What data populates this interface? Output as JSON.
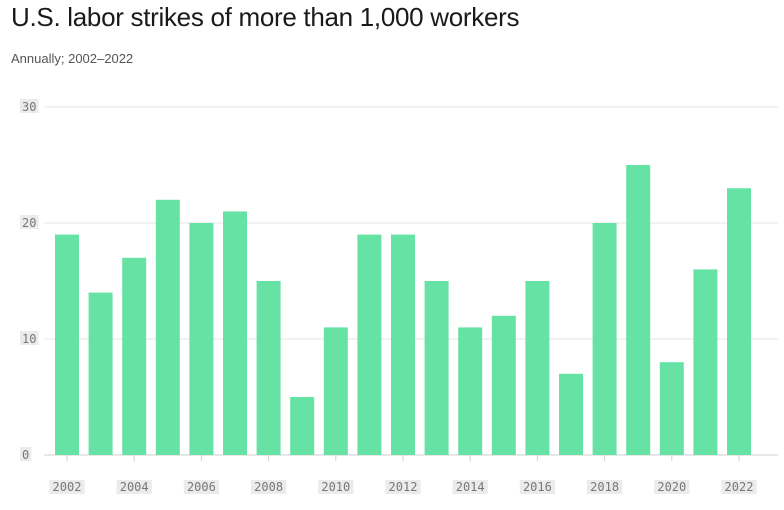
{
  "title": "U.S. labor strikes of more than 1,000 workers",
  "subtitle": "Annually; 2002–2022",
  "colors": {
    "bar": "#67e2a5",
    "grid": "#e6e6e6",
    "text": "#1a1a1a"
  },
  "chart_data": {
    "type": "bar",
    "title": "U.S. labor strikes of more than 1,000 workers",
    "subtitle": "Annually; 2002–2022",
    "xlabel": "",
    "ylabel": "",
    "categories": [
      "2002",
      "2003",
      "2004",
      "2005",
      "2006",
      "2007",
      "2008",
      "2009",
      "2010",
      "2011",
      "2012",
      "2013",
      "2014",
      "2015",
      "2016",
      "2017",
      "2018",
      "2019",
      "2020",
      "2021",
      "2022"
    ],
    "values": [
      19,
      14,
      17,
      22,
      20,
      21,
      15,
      5,
      11,
      19,
      19,
      15,
      11,
      12,
      15,
      7,
      20,
      25,
      8,
      16,
      23
    ],
    "ylim": [
      0,
      30
    ],
    "yticks": [
      0,
      10,
      20,
      30
    ],
    "xtick_labels": [
      "2002",
      "2004",
      "2006",
      "2008",
      "2010",
      "2012",
      "2014",
      "2016",
      "2018",
      "2020",
      "2022"
    ],
    "grid": true,
    "legend": "none"
  }
}
